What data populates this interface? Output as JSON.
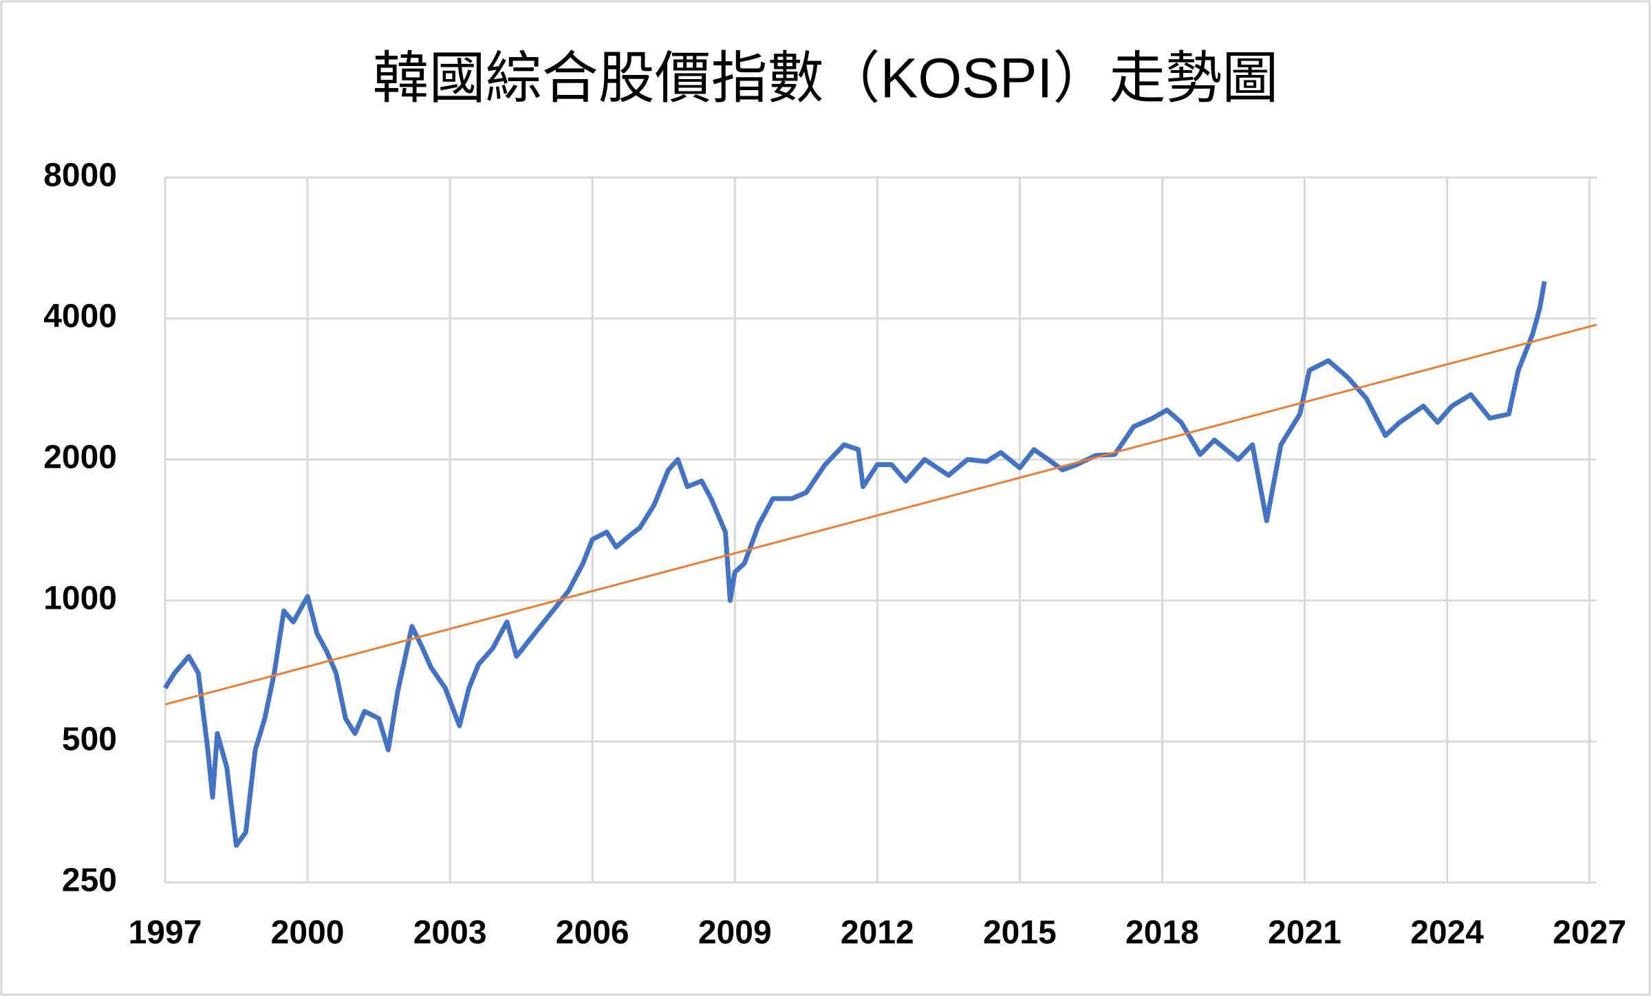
{
  "chart_data": {
    "type": "line",
    "title": "韓國綜合股價指數（KOSPI）走勢圖",
    "log_scale": true,
    "grid": true,
    "xlim": [
      1997,
      2027.15
    ],
    "xticks": [
      1997,
      2000,
      2003,
      2006,
      2009,
      2012,
      2015,
      2018,
      2021,
      2024,
      2027
    ],
    "ylim": [
      250,
      8000
    ],
    "yticks": [
      250,
      500,
      1000,
      2000,
      4000,
      8000
    ],
    "series": [
      {
        "color": "#4472c4",
        "width": "thick",
        "x": [
          1997.0,
          1997.2,
          1997.5,
          1997.7,
          1997.9,
          1998.0,
          1998.1,
          1998.3,
          1998.5,
          1998.7,
          1998.9,
          1999.1,
          1999.3,
          1999.5,
          1999.7,
          2000.0,
          2000.2,
          2000.4,
          2000.6,
          2000.8,
          2001.0,
          2001.2,
          2001.5,
          2001.7,
          2001.9,
          2002.2,
          2002.4,
          2002.6,
          2002.9,
          2003.2,
          2003.4,
          2003.6,
          2003.9,
          2004.2,
          2004.4,
          2004.7,
          2004.9,
          2005.2,
          2005.5,
          2005.8,
          2006.0,
          2006.3,
          2006.5,
          2006.8,
          2007.0,
          2007.3,
          2007.6,
          2007.8,
          2008.0,
          2008.3,
          2008.5,
          2008.8,
          2008.9,
          2009.0,
          2009.2,
          2009.5,
          2009.8,
          2010.2,
          2010.5,
          2010.9,
          2011.3,
          2011.6,
          2011.7,
          2012.0,
          2012.3,
          2012.6,
          2013.0,
          2013.5,
          2013.9,
          2014.3,
          2014.6,
          2015.0,
          2015.3,
          2015.6,
          2015.9,
          2016.2,
          2016.6,
          2017.0,
          2017.4,
          2017.8,
          2018.1,
          2018.4,
          2018.8,
          2019.1,
          2019.6,
          2019.9,
          2020.2,
          2020.5,
          2020.9,
          2021.1,
          2021.5,
          2021.9,
          2022.3,
          2022.7,
          2023.0,
          2023.5,
          2023.8,
          2024.1,
          2024.5,
          2024.9,
          2025.3,
          2025.5,
          2025.8,
          2025.95,
          2026.05
        ],
        "values": [
          650,
          700,
          760,
          700,
          480,
          380,
          520,
          440,
          300,
          320,
          480,
          560,
          700,
          950,
          900,
          1020,
          850,
          780,
          700,
          560,
          520,
          580,
          560,
          480,
          640,
          880,
          800,
          720,
          650,
          540,
          650,
          730,
          790,
          900,
          760,
          830,
          880,
          960,
          1050,
          1200,
          1350,
          1400,
          1300,
          1380,
          1430,
          1600,
          1900,
          2000,
          1750,
          1800,
          1650,
          1400,
          1000,
          1150,
          1200,
          1450,
          1650,
          1650,
          1700,
          1950,
          2150,
          2100,
          1750,
          1950,
          1950,
          1800,
          2000,
          1850,
          2000,
          1980,
          2070,
          1920,
          2100,
          2000,
          1900,
          1950,
          2040,
          2050,
          2350,
          2450,
          2550,
          2400,
          2050,
          2200,
          2000,
          2150,
          1480,
          2150,
          2500,
          3100,
          3250,
          3000,
          2700,
          2250,
          2400,
          2600,
          2400,
          2600,
          2750,
          2450,
          2500,
          3100,
          3700,
          4200,
          4800
        ]
      },
      {
        "color": "#ed7d31",
        "width": "thin",
        "x": [
          1997,
          2027.15
        ],
        "values": [
          600,
          3880
        ]
      }
    ]
  }
}
